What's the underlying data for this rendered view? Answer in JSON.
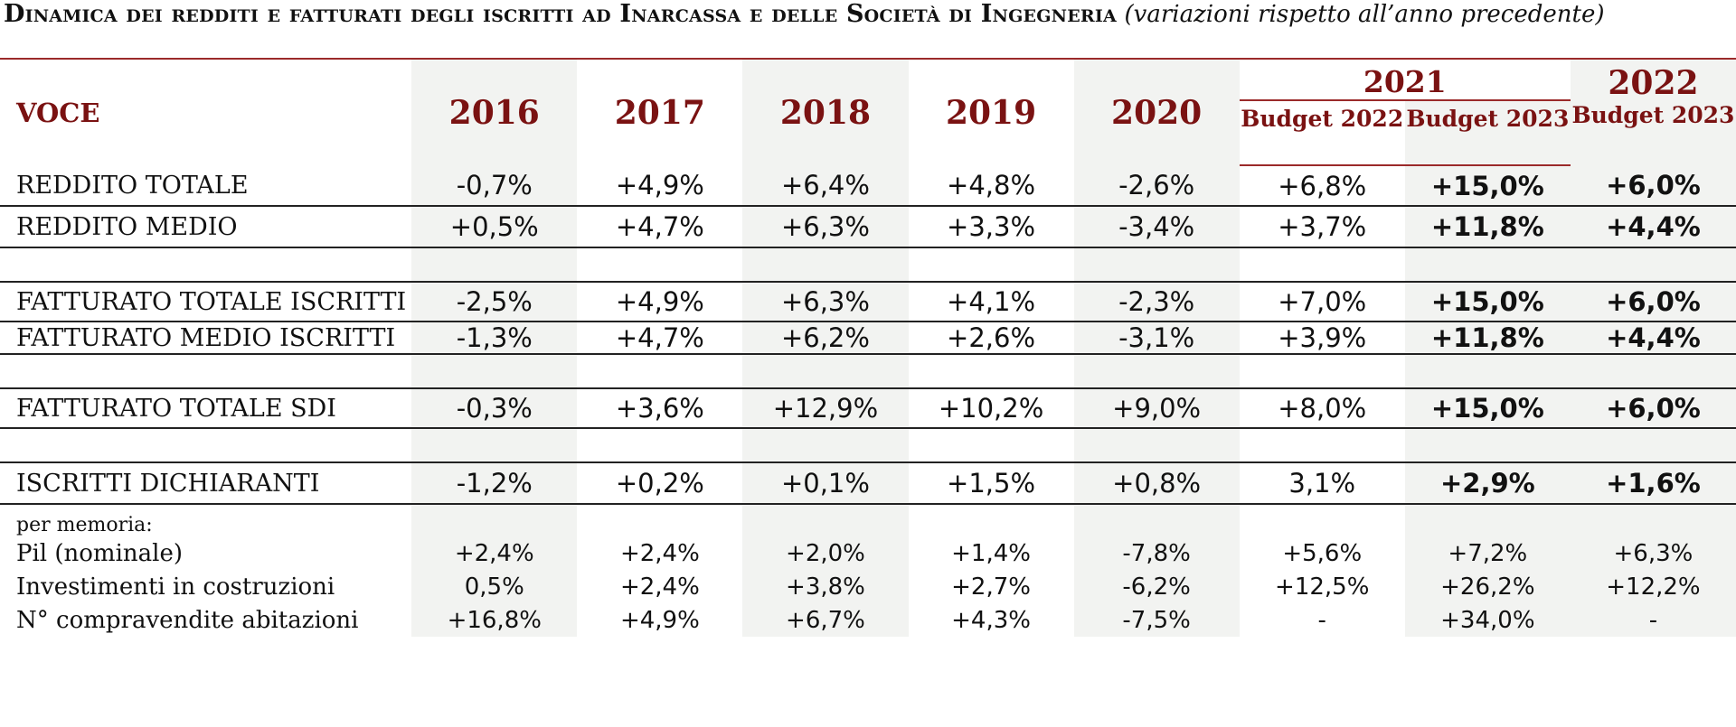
{
  "title": {
    "main": "Dinamica dei redditi e fatturati degli iscritti ad Inarcassa e delle Società di Ingegneria",
    "sub": "(variazioni rispetto all’anno precedente)"
  },
  "header": {
    "voce": "VOCE",
    "years": [
      "2016",
      "2017",
      "2018",
      "2019",
      "2020"
    ],
    "year_2021": "2021",
    "budget_2021_a": "Budget 2022",
    "budget_2021_b": "Budget 2023",
    "year_2022": "2022",
    "budget_2022": "Budget 2023"
  },
  "rows": [
    {
      "label": "REDDITO TOTALE",
      "values": [
        "-0,7%",
        "+4,9%",
        "+6,4%",
        "+4,8%",
        "-2,6%",
        "+6,8%",
        "+15,0%",
        "+6,0%"
      ]
    },
    {
      "label": "REDDITO MEDIO",
      "values": [
        "+0,5%",
        "+4,7%",
        "+6,3%",
        "+3,3%",
        "-3,4%",
        "+3,7%",
        "+11,8%",
        "+4,4%"
      ]
    },
    {
      "label": "FATTURATO TOTALE ISCRITTI",
      "values": [
        "-2,5%",
        "+4,9%",
        "+6,3%",
        "+4,1%",
        "-2,3%",
        "+7,0%",
        "+15,0%",
        "+6,0%"
      ]
    },
    {
      "label": "FATTURATO MEDIO ISCRITTI",
      "values": [
        "-1,3%",
        "+4,7%",
        "+6,2%",
        "+2,6%",
        "-3,1%",
        "+3,9%",
        "+11,8%",
        "+4,4%"
      ]
    },
    {
      "label": "FATTURATO TOTALE SDI",
      "values": [
        "-0,3%",
        "+3,6%",
        "+12,9%",
        "+10,2%",
        "+9,0%",
        "+8,0%",
        "+15,0%",
        "+6,0%"
      ]
    },
    {
      "label": "ISCRITTI DICHIARANTI",
      "values": [
        "-1,2%",
        "+0,2%",
        "+0,1%",
        "+1,5%",
        "+0,8%",
        "3,1%",
        "+2,9%",
        "+1,6%"
      ]
    }
  ],
  "memo": {
    "label": "per memoria:",
    "rows": [
      {
        "label": "Pil (nominale)",
        "values": [
          "+2,4%",
          "+2,4%",
          "+2,0%",
          "+1,4%",
          "-7,8%",
          "+5,6%",
          "+7,2%",
          "+6,3%"
        ]
      },
      {
        "label": "Investimenti in costruzioni",
        "values": [
          "0,5%",
          "+2,4%",
          "+3,8%",
          "+2,7%",
          "-6,2%",
          "+12,5%",
          "+26,2%",
          "+12,2%"
        ]
      },
      {
        "label": "N° compravendite abitazioni",
        "values": [
          "+16,8%",
          "+4,9%",
          "+6,7%",
          "+4,3%",
          "-7,5%",
          "-",
          "+34,0%",
          "-"
        ]
      }
    ]
  }
}
